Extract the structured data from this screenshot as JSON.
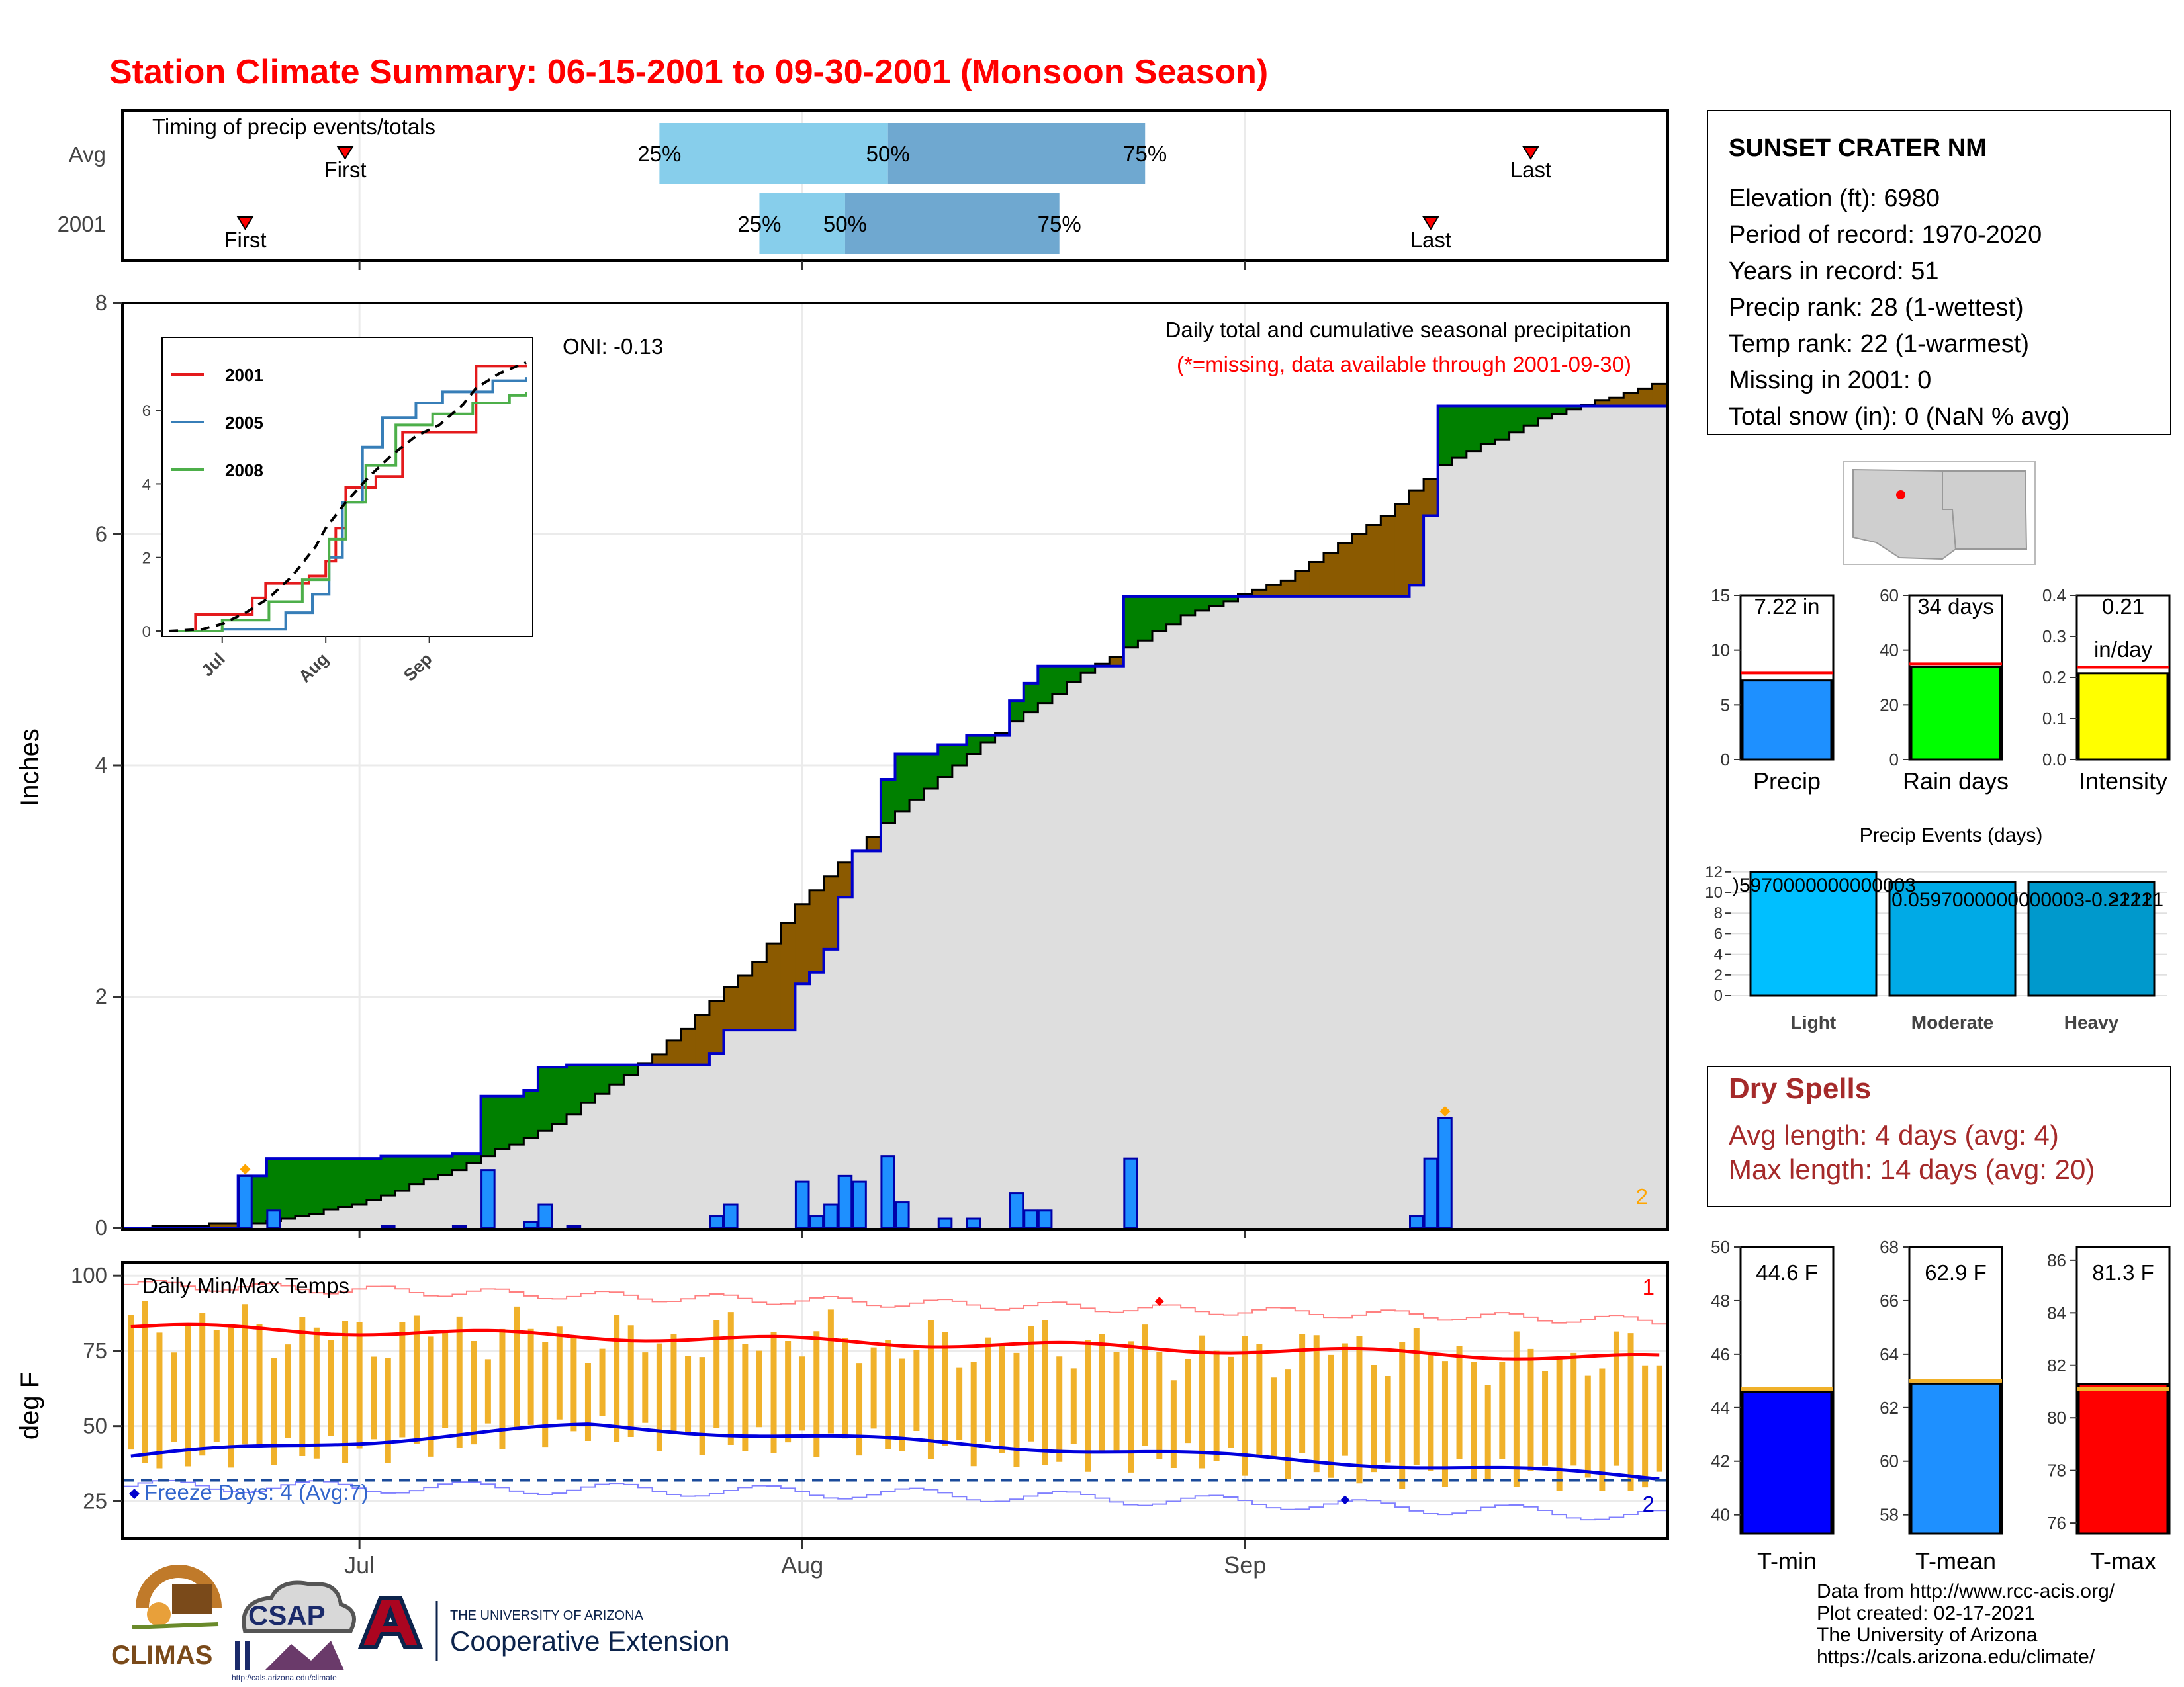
{
  "page": {
    "title": "Station Climate Summary: 06-15-2001 to 09-30-2001 (Monsoon Season)"
  },
  "timing_panel": {
    "title": "Timing of precip events/totals",
    "rows": [
      {
        "label": "Avg",
        "first_label": "First",
        "last_label": "Last",
        "first": "2001-06-30",
        "last": "2001-09-21",
        "q25": "2001-07-22",
        "q50": "2001-08-07",
        "q75": "2001-08-25",
        "q25_label": "25%",
        "q50_label": "50%",
        "q75_label": "75%"
      },
      {
        "label": "2001",
        "first_label": "First",
        "last_label": "Last",
        "first": "2001-06-23",
        "last": "2001-09-14",
        "q25": "2001-07-29",
        "q50": "2001-08-04",
        "q75": "2001-08-19",
        "q25_label": "25%",
        "q50_label": "50%",
        "q75_label": "75%"
      }
    ]
  },
  "precip_panel": {
    "ylabel": "Inches",
    "y_ticks": [
      "0",
      "2",
      "4",
      "6",
      "8"
    ],
    "oni": "ONI: -0.13",
    "caption": "Daily total and cumulative seasonal precipitation",
    "missing_note": "(*=missing, data available through 2001-09-30)",
    "corner_count": "2"
  },
  "inset": {
    "legend": [
      "2001",
      "2005",
      "2008"
    ],
    "y_ticks": [
      "0",
      "2",
      "4",
      "6"
    ],
    "x_ticks": [
      "Jul",
      "Aug",
      "Sep"
    ]
  },
  "temp_panel": {
    "ylabel": "deg F",
    "title": "Daily Min/Max Temps",
    "y_ticks": [
      "25",
      "50",
      "75",
      "100"
    ],
    "freeze_label": "Freeze Days: 4 (Avg:7)",
    "count_max": "1",
    "count_min": "2"
  },
  "x_axis": {
    "ticks": [
      "Jul",
      "Aug",
      "Sep"
    ]
  },
  "station": {
    "name": "SUNSET CRATER NM",
    "lines": [
      "Elevation (ft): 6980",
      "Period of record: 1970-2020",
      "Years in record: 51",
      "Precip rank: 28 (1-wettest)",
      "Temp rank: 22 (1-warmest)",
      "Missing in 2001: 0",
      "Total snow (in): 0 (NaN % avg)"
    ]
  },
  "mini_bars": [
    {
      "label": "Precip",
      "value_text": "7.22 in",
      "value": 7.22,
      "avg": 7.9,
      "ymax": 15,
      "ticks": [
        "0",
        "5",
        "10",
        "15"
      ],
      "color": "#1e90ff"
    },
    {
      "label": "Rain days",
      "value_text": "34 days",
      "value": 34,
      "avg": 35,
      "ymax": 60,
      "ticks": [
        "0",
        "20",
        "40",
        "60"
      ],
      "color": "#00ff00"
    },
    {
      "label": "Intensity",
      "value_text": "0.21",
      "value_text2": "in/day",
      "value": 0.21,
      "avg": 0.225,
      "ymax": 0.4,
      "ticks": [
        "0.0",
        "0.1",
        "0.2",
        "0.3",
        "0.4"
      ],
      "color": "#ffff00"
    }
  ],
  "precip_events": {
    "title": "Precip Events (days)",
    "categories": [
      "Light",
      "Moderate",
      "Heavy"
    ],
    "values": [
      12,
      11,
      11
    ],
    "labels": [
      ")5970000000000003",
      "0.0597000000000003-0.2121",
      ">2121"
    ],
    "ticks": [
      "0",
      "2",
      "4",
      "6",
      "8",
      "10",
      "12"
    ],
    "colors": [
      "#00bfff",
      "#00aae6",
      "#0099cc"
    ]
  },
  "dry_spells": {
    "title": "Dry Spells",
    "lines": [
      "Avg length: 4 days (avg: 4)",
      "Max length: 14 days (avg: 20)"
    ]
  },
  "temp_bars": [
    {
      "label": "T-min",
      "value_text": "44.6 F",
      "value": 44.6,
      "avg": 44.7,
      "ymin": 39.3,
      "ymax": 50,
      "ticks": [
        "40",
        "42",
        "44",
        "46",
        "48",
        "50"
      ],
      "color": "#0000ff"
    },
    {
      "label": "T-mean",
      "value_text": "62.9 F",
      "value": 62.9,
      "avg": 63.0,
      "ymin": 57.3,
      "ymax": 68,
      "ticks": [
        "58",
        "60",
        "62",
        "64",
        "66",
        "68"
      ],
      "color": "#1e90ff"
    },
    {
      "label": "T-max",
      "value_text": "81.3 F",
      "value": 81.3,
      "avg": 81.1,
      "ymin": 75.6,
      "ymax": 86.5,
      "ticks": [
        "76",
        "78",
        "80",
        "82",
        "84",
        "86"
      ],
      "color": "#ff0000"
    }
  ],
  "footer": {
    "credits": [
      "Data from http://www.rcc-acis.org/",
      "Plot created: 02-17-2021",
      "The University of Arizona",
      "https://cals.arizona.edu/climate/"
    ],
    "logo_climas": "CLIMAS",
    "logo_csap": "CSAP",
    "logo_csap_url": "http://cals.arizona.edu/climate",
    "logo_ua_top": "THE UNIVERSITY OF ARIZONA",
    "logo_ua_main": "Cooperative Extension"
  },
  "chart_data": {
    "type": "step-area",
    "x_start": "2001-06-15",
    "x_end": "2001-09-30",
    "ylim": [
      0,
      8
    ],
    "daily_precip": [
      [
        "2001-06-23",
        0.45
      ],
      [
        "2001-06-25",
        0.15
      ],
      [
        "2001-07-03",
        0.02
      ],
      [
        "2001-07-08",
        0.02
      ],
      [
        "2001-07-10",
        0.5
      ],
      [
        "2001-07-13",
        0.05
      ],
      [
        "2001-07-14",
        0.2
      ],
      [
        "2001-07-16",
        0.02
      ],
      [
        "2001-07-26",
        0.1
      ],
      [
        "2001-07-27",
        0.2
      ],
      [
        "2001-08-01",
        0.4
      ],
      [
        "2001-08-02",
        0.1
      ],
      [
        "2001-08-03",
        0.2
      ],
      [
        "2001-08-04",
        0.45
      ],
      [
        "2001-08-05",
        0.4
      ],
      [
        "2001-08-07",
        0.62
      ],
      [
        "2001-08-08",
        0.22
      ],
      [
        "2001-08-11",
        0.08
      ],
      [
        "2001-08-13",
        0.08
      ],
      [
        "2001-08-16",
        0.3
      ],
      [
        "2001-08-17",
        0.15
      ],
      [
        "2001-08-18",
        0.15
      ],
      [
        "2001-08-24",
        0.6
      ],
      [
        "2001-09-13",
        0.1
      ],
      [
        "2001-09-14",
        0.6
      ],
      [
        "2001-09-15",
        0.95
      ]
    ],
    "avg_cumulative": [
      [
        "2001-06-15",
        0.0
      ],
      [
        "2001-06-25",
        0.05
      ],
      [
        "2001-07-01",
        0.2
      ],
      [
        "2001-07-08",
        0.5
      ],
      [
        "2001-07-15",
        0.9
      ],
      [
        "2001-07-22",
        1.5
      ],
      [
        "2001-07-29",
        2.3
      ],
      [
        "2001-08-01",
        2.8
      ],
      [
        "2001-08-07",
        3.5
      ],
      [
        "2001-08-14",
        4.2
      ],
      [
        "2001-08-21",
        4.8
      ],
      [
        "2001-08-28",
        5.3
      ],
      [
        "2001-09-04",
        5.6
      ],
      [
        "2001-09-11",
        6.15
      ],
      [
        "2001-09-15",
        6.6
      ],
      [
        "2001-09-22",
        7.0
      ],
      [
        "2001-09-30",
        7.3
      ]
    ],
    "inset_series": [
      {
        "name": "2001",
        "color": "#e41a1c",
        "values": [
          [
            "2001-06-15",
            0
          ],
          [
            "2001-06-23",
            0.45
          ],
          [
            "2001-07-10",
            0.9
          ],
          [
            "2001-07-14",
            1.3
          ],
          [
            "2001-07-27",
            1.5
          ],
          [
            "2001-08-01",
            1.9
          ],
          [
            "2001-08-04",
            2.8
          ],
          [
            "2001-08-07",
            3.9
          ],
          [
            "2001-08-16",
            4.2
          ],
          [
            "2001-08-24",
            5.4
          ],
          [
            "2001-09-15",
            7.2
          ],
          [
            "2001-09-30",
            7.25
          ]
        ]
      },
      {
        "name": "2005",
        "color": "#377eb8",
        "values": [
          [
            "2001-06-15",
            0
          ],
          [
            "2001-07-01",
            0.05
          ],
          [
            "2001-07-20",
            0.5
          ],
          [
            "2001-07-28",
            1.0
          ],
          [
            "2001-08-02",
            2.0
          ],
          [
            "2001-08-06",
            3.5
          ],
          [
            "2001-08-12",
            5.0
          ],
          [
            "2001-08-18",
            5.8
          ],
          [
            "2001-08-28",
            6.2
          ],
          [
            "2001-09-05",
            6.5
          ],
          [
            "2001-09-20",
            6.8
          ],
          [
            "2001-09-30",
            6.9
          ]
        ]
      },
      {
        "name": "2008",
        "color": "#4daf4a",
        "values": [
          [
            "2001-06-15",
            0
          ],
          [
            "2001-07-01",
            0.3
          ],
          [
            "2001-07-15",
            0.8
          ],
          [
            "2001-07-25",
            1.4
          ],
          [
            "2001-08-02",
            2.5
          ],
          [
            "2001-08-07",
            3.5
          ],
          [
            "2001-08-13",
            4.5
          ],
          [
            "2001-08-22",
            5.6
          ],
          [
            "2001-09-02",
            5.9
          ],
          [
            "2001-09-14",
            6.2
          ],
          [
            "2001-09-25",
            6.4
          ],
          [
            "2001-09-30",
            6.5
          ]
        ]
      }
    ],
    "temps": {
      "max_start": 83,
      "max_end": 72.5,
      "min_start": 40,
      "min_peak": 50,
      "min_end": 33,
      "freeze_line": 32,
      "record_max_start": 97,
      "record_max_end": 85,
      "record_min_start": 30,
      "record_min_end": 20
    }
  }
}
